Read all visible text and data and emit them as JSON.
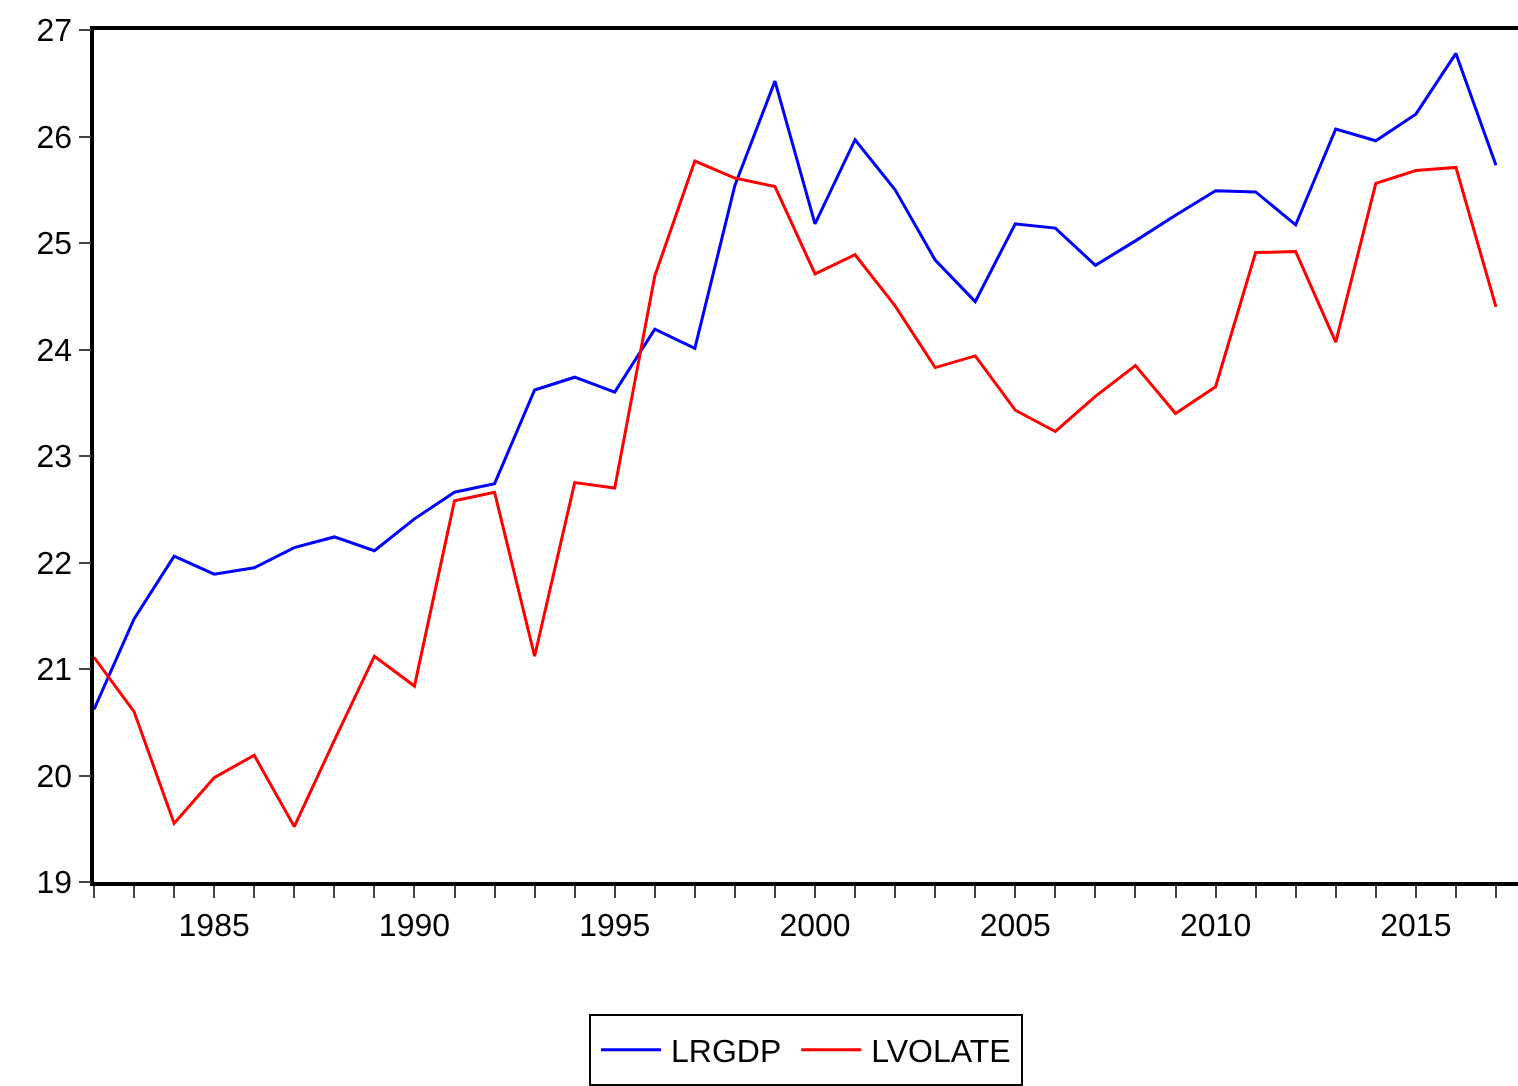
{
  "chart_data": {
    "type": "line",
    "x": [
      1982,
      1983,
      1984,
      1985,
      1986,
      1987,
      1988,
      1989,
      1990,
      1991,
      1992,
      1993,
      1994,
      1995,
      1996,
      1997,
      1998,
      1999,
      2000,
      2001,
      2002,
      2003,
      2004,
      2005,
      2006,
      2007,
      2008,
      2009,
      2010,
      2011,
      2012,
      2013,
      2014,
      2015,
      2016,
      2017
    ],
    "series": [
      {
        "name": "LRGDP",
        "color": "#0000ff",
        "values": [
          20.62,
          21.47,
          22.06,
          21.89,
          21.95,
          22.14,
          22.24,
          22.11,
          22.41,
          22.66,
          22.74,
          23.62,
          23.74,
          23.6,
          24.19,
          24.01,
          25.54,
          26.52,
          25.18,
          25.97,
          25.5,
          24.84,
          24.45,
          25.18,
          25.14,
          24.79,
          25.02,
          25.26,
          25.49,
          25.48,
          25.17,
          26.07,
          25.96,
          26.21,
          26.78,
          25.73
        ]
      },
      {
        "name": "LVOLATE",
        "color": "#ff0000",
        "values": [
          21.11,
          20.6,
          19.55,
          19.98,
          20.19,
          19.52,
          20.33,
          21.12,
          20.84,
          22.58,
          22.66,
          21.12,
          22.75,
          22.7,
          24.69,
          25.77,
          25.61,
          25.53,
          24.71,
          24.89,
          24.41,
          23.83,
          23.94,
          23.43,
          23.23,
          23.56,
          23.85,
          23.4,
          23.65,
          24.91,
          24.92,
          24.07,
          25.56,
          25.68,
          25.71,
          24.4
        ]
      }
    ],
    "xlim": [
      1982,
      2017.55
    ],
    "xticks": [
      {
        "value": 1982,
        "label": null
      },
      {
        "value": 1983,
        "label": null
      },
      {
        "value": 1984,
        "label": null
      },
      1985,
      {
        "value": 1986,
        "label": null
      },
      {
        "value": 1987,
        "label": null
      },
      {
        "value": 1988,
        "label": null
      },
      {
        "value": 1989,
        "label": null
      },
      1990,
      {
        "value": 1991,
        "label": null
      },
      {
        "value": 1992,
        "label": null
      },
      {
        "value": 1993,
        "label": null
      },
      {
        "value": 1994,
        "label": null
      },
      1995,
      {
        "value": 1996,
        "label": null
      },
      {
        "value": 1997,
        "label": null
      },
      {
        "value": 1998,
        "label": null
      },
      {
        "value": 1999,
        "label": null
      },
      2000,
      {
        "value": 2001,
        "label": null
      },
      {
        "value": 2002,
        "label": null
      },
      {
        "value": 2003,
        "label": null
      },
      {
        "value": 2004,
        "label": null
      },
      2005,
      {
        "value": 2006,
        "label": null
      },
      {
        "value": 2007,
        "label": null
      },
      {
        "value": 2008,
        "label": null
      },
      {
        "value": 2009,
        "label": null
      },
      2010,
      {
        "value": 2011,
        "label": null
      },
      {
        "value": 2012,
        "label": null
      },
      {
        "value": 2013,
        "label": null
      },
      {
        "value": 2014,
        "label": null
      },
      2015,
      {
        "value": 2016,
        "label": null
      },
      {
        "value": 2017,
        "label": null
      }
    ],
    "ylim": [
      19,
      27
    ],
    "yticks": [
      19,
      20,
      21,
      22,
      23,
      24,
      25,
      26,
      27
    ],
    "legend": "bottom",
    "line_style": "solid",
    "marker": "none"
  }
}
